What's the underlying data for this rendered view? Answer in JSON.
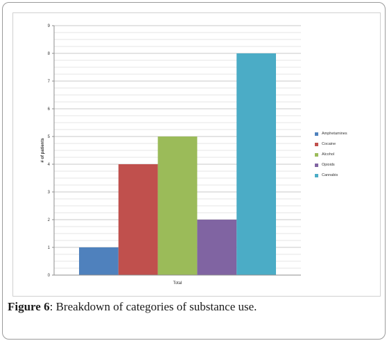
{
  "caption": {
    "label": "Figure 6",
    "text": ": Breakdown of categories of substance use."
  },
  "chart_data": {
    "type": "bar",
    "categories": [
      "Total"
    ],
    "series": [
      {
        "name": "Amphetamines",
        "values": [
          1
        ],
        "color": "#4f81bd"
      },
      {
        "name": "Cocaine",
        "values": [
          4
        ],
        "color": "#c0504d"
      },
      {
        "name": "Alcohol",
        "values": [
          5
        ],
        "color": "#9bbb59"
      },
      {
        "name": "Opioids",
        "values": [
          2
        ],
        "color": "#8064a2"
      },
      {
        "name": "Cannabis",
        "values": [
          8
        ],
        "color": "#4bacc6"
      }
    ],
    "title": "",
    "xlabel": "",
    "ylabel": "# of patients",
    "ylim": [
      0,
      9
    ],
    "yticks": [
      "0",
      "1",
      "2",
      "3",
      "4",
      "5",
      "6",
      "7",
      "8",
      "9"
    ],
    "grid": true,
    "legend_position": "right"
  }
}
